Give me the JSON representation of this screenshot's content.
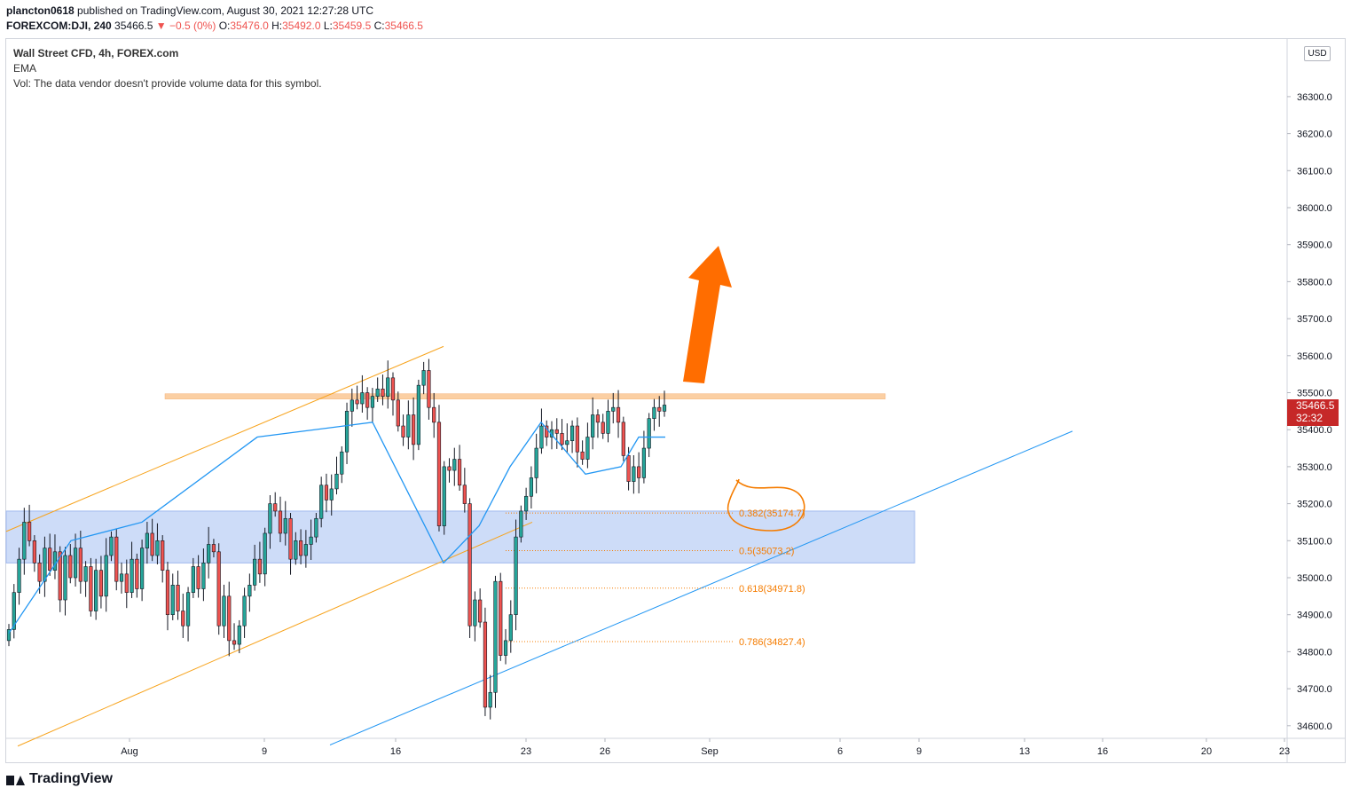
{
  "header": {
    "publisher": "plancton0618",
    "published_text": "published on TradingView.com, August 30, 2021 12:27:28 UTC",
    "symbol": "FOREXCOM:DJI, 240",
    "last_price": "35466.5",
    "change": "▼ −0.5 (0%)",
    "o_label": "O:",
    "o_value": "35476.0",
    "h_label": "H:",
    "h_value": "35492.0",
    "l_label": "L:",
    "l_value": "35459.5",
    "c_label": "C:",
    "c_value": "35466.5"
  },
  "legend": {
    "title": "Wall Street CFD, 4h, FOREX.com",
    "indicator": "EMA",
    "volume_note": "Vol: The data vendor doesn't provide volume data for this symbol."
  },
  "price_axis": {
    "currency": "USD",
    "current_price": "35466.5",
    "countdown": "32:32"
  },
  "footer": {
    "brand": "TradingView"
  },
  "colors": {
    "up": "#26a69a",
    "down": "#ef5350",
    "candle": "#131722",
    "ema": "#2196f3",
    "channel": "#f7a31c",
    "trend": "#2196f3",
    "zone": "#bcd0f5",
    "resistance": "#fbcfa3",
    "fib": "#f57c00",
    "arrow": "#ff6d00"
  },
  "chart_data": {
    "type": "candlestick",
    "symbol": "FOREXCOM:DJI",
    "interval": "240",
    "ylim": [
      34570,
      36430
    ],
    "y_ticks": [
      34600,
      34700,
      34800,
      34900,
      35000,
      35100,
      35200,
      35300,
      35400,
      35500,
      35600,
      35700,
      35800,
      35900,
      36000,
      36100,
      36200,
      36300
    ],
    "y_tick_labels": [
      "34600.0",
      "34700.0",
      "34800.0",
      "34900.0",
      "35000.0",
      "35100.0",
      "35200.0",
      "35300.0",
      "35400.0",
      "35500.0",
      "35600.0",
      "35700.0",
      "35800.0",
      "35900.0",
      "36000.0",
      "36100.0",
      "36200.0",
      "36300.0"
    ],
    "x_tick_labels": [
      "Aug",
      "9",
      "16",
      "23",
      "26",
      "Sep",
      "6",
      "9",
      "13",
      "16",
      "20",
      "23"
    ],
    "candles_close": [
      34860,
      34960,
      35050,
      35150,
      35100,
      35040,
      34990,
      35080,
      35020,
      35070,
      34940,
      35060,
      35000,
      35080,
      34990,
      35030,
      34910,
      35020,
      34950,
      35060,
      35110,
      34990,
      35010,
      34960,
      35050,
      34970,
      35080,
      35120,
      35060,
      35100,
      35020,
      34900,
      34980,
      34910,
      34870,
      34960,
      35030,
      34970,
      35040,
      35090,
      35070,
      34870,
      34950,
      34830,
      34820,
      34870,
      34950,
      34980,
      35050,
      35010,
      35120,
      35200,
      35180,
      35120,
      35160,
      35050,
      35100,
      35060,
      35090,
      35110,
      35160,
      35250,
      35210,
      35240,
      35280,
      35340,
      35450,
      35480,
      35470,
      35500,
      35460,
      35490,
      35510,
      35490,
      35540,
      35480,
      35410,
      35380,
      35440,
      35360,
      35520,
      35560,
      35460,
      35420,
      35140,
      35300,
      35290,
      35320,
      35250,
      35200,
      34870,
      34940,
      34880,
      34650,
      34690,
      34990,
      34790,
      34830,
      34900,
      35110,
      35180,
      35220,
      35270,
      35350,
      35410,
      35380,
      35400,
      35390,
      35360,
      35370,
      35410,
      35340,
      35320,
      35380,
      35440,
      35420,
      35390,
      35450,
      35460,
      35420,
      35330,
      35260,
      35300,
      35270,
      35350,
      35430,
      35460,
      35450,
      35466.5
    ],
    "ema_points": [
      34850,
      35100,
      35150,
      35380,
      35420,
      35040,
      35140,
      35300,
      35420,
      35280,
      35300,
      35380,
      35380
    ],
    "resistance_level": 35490,
    "support_zone": [
      35040,
      35180
    ],
    "fibonacci": [
      {
        "ratio": "0.382",
        "price": 35174.7,
        "label": "0.382(35174.7)"
      },
      {
        "ratio": "0.5",
        "price": 35073.2,
        "label": "0.5(35073.2)"
      },
      {
        "ratio": "0.618",
        "price": 34971.8,
        "label": "0.618(34971.8)"
      },
      {
        "ratio": "0.786",
        "price": 34827.4,
        "label": "0.786(34827.4)"
      }
    ],
    "annotations": [
      "upward arrow",
      "ascending channel",
      "ascending trendline",
      "circled 0.382 level"
    ]
  }
}
